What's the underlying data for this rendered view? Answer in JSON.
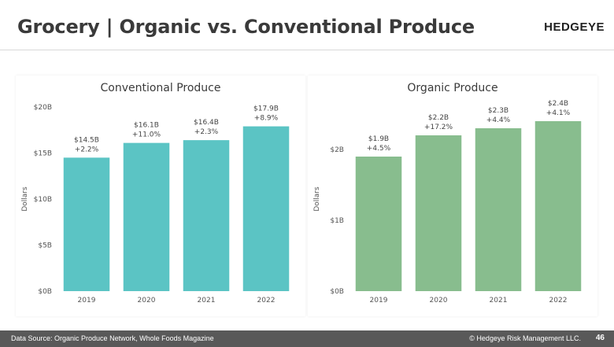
{
  "slide": {
    "title": "Grocery | Organic vs. Conventional Produce",
    "brand": "HEDGEYE"
  },
  "footer": {
    "source": "Data Source: Organic Produce Network, Whole Foods Magazine",
    "copyright": "© Hedgeye Risk Management LLC.",
    "page": "46"
  },
  "chart_data": [
    {
      "type": "bar",
      "title": "Conventional Produce",
      "ylabel": "Dollars",
      "categories": [
        "2019",
        "2020",
        "2021",
        "2022"
      ],
      "values": [
        14.5,
        16.1,
        16.4,
        17.9
      ],
      "value_labels": [
        "$14.5B",
        "$16.1B",
        "$16.4B",
        "$17.9B"
      ],
      "growth_labels": [
        "+2.2%",
        "+11.0%",
        "+2.3%",
        "+8.9%"
      ],
      "ylim": [
        0,
        20
      ],
      "yticks": [
        0,
        5,
        10,
        15,
        20
      ],
      "ytick_labels": [
        "$0B",
        "$5B",
        "$10B",
        "$15B",
        "$20B"
      ],
      "grid": false,
      "color": "#5bc4c4"
    },
    {
      "type": "bar",
      "title": "Organic Produce",
      "ylabel": "Dollars",
      "categories": [
        "2019",
        "2020",
        "2021",
        "2022"
      ],
      "values": [
        1.9,
        2.2,
        2.3,
        2.4
      ],
      "value_labels": [
        "$1.9B",
        "$2.2B",
        "$2.3B",
        "$2.4B"
      ],
      "growth_labels": [
        "+4.5%",
        "+17.2%",
        "+4.4%",
        "+4.1%"
      ],
      "ylim": [
        0,
        2.6
      ],
      "yticks": [
        0,
        1,
        2
      ],
      "ytick_labels": [
        "$0B",
        "$1B",
        "$2B"
      ],
      "grid": false,
      "color": "#88bd8e"
    }
  ]
}
